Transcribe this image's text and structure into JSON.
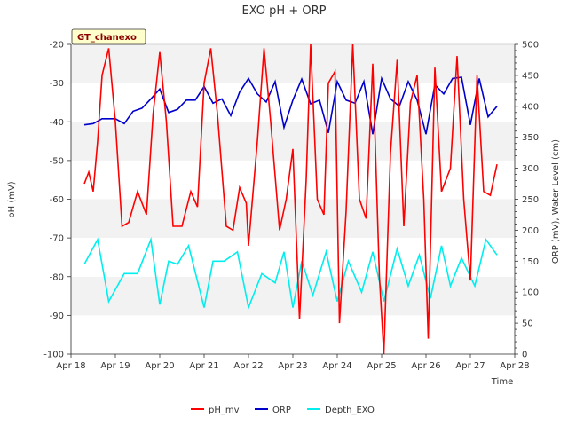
{
  "chart_data": {
    "type": "line",
    "title": "EXO pH + ORP",
    "station_label": "GT_chanexo",
    "xlabel": "Time",
    "ylabel_left": "pH (mV)",
    "ylabel_right": "ORP (mV), Water Level (cm)",
    "x_ticks": [
      "Apr 18",
      "Apr 19",
      "Apr 20",
      "Apr 21",
      "Apr 22",
      "Apr 23",
      "Apr 24",
      "Apr 25",
      "Apr 26",
      "Apr 27",
      "Apr 28"
    ],
    "x_range": [
      "Apr 18",
      "Apr 28"
    ],
    "ylim_left": [
      -100,
      -20
    ],
    "ylim_right": [
      0,
      500
    ],
    "y_ticks_left": [
      "-100",
      "-90",
      "-80",
      "-70",
      "-60",
      "-50",
      "-40",
      "-30",
      "-20"
    ],
    "y_ticks_right": [
      "0",
      "50",
      "100",
      "150",
      "200",
      "250",
      "300",
      "350",
      "400",
      "450",
      "500"
    ],
    "grid": "horizontal bands",
    "legend_position": "bottom",
    "series": [
      {
        "name": "pH_mv",
        "axis": "left",
        "color": "#ff0000",
        "x": [
          18.3,
          18.4,
          18.5,
          18.6,
          18.7,
          18.85,
          19.0,
          19.15,
          19.3,
          19.5,
          19.7,
          19.85,
          20.0,
          20.15,
          20.3,
          20.5,
          20.7,
          20.85,
          21.0,
          21.15,
          21.3,
          21.5,
          21.65,
          21.8,
          21.95,
          22.0,
          22.2,
          22.35,
          22.5,
          22.7,
          22.85,
          23.0,
          23.15,
          23.3,
          23.4,
          23.55,
          23.7,
          23.8,
          23.95,
          24.05,
          24.2,
          24.35,
          24.5,
          24.65,
          24.8,
          24.95,
          25.05,
          25.2,
          25.35,
          25.5,
          25.65,
          25.8,
          25.95,
          26.05,
          26.2,
          26.35,
          26.55,
          26.7,
          26.85,
          27.0,
          27.15,
          27.3,
          27.45,
          27.6
        ],
        "y": [
          -56,
          -53,
          -58,
          -45,
          -28,
          -21,
          -40,
          -67,
          -66,
          -58,
          -64,
          -38,
          -22,
          -40,
          -67,
          -67,
          -58,
          -62,
          -30,
          -21,
          -38,
          -67,
          -68,
          -57,
          -61,
          -72,
          -45,
          -21,
          -40,
          -68,
          -60,
          -47,
          -91,
          -55,
          -20,
          -60,
          -64,
          -30,
          -27,
          -92,
          -63,
          -20,
          -60,
          -65,
          -25,
          -80,
          -100,
          -48,
          -24,
          -67,
          -35,
          -28,
          -60,
          -96,
          -26,
          -58,
          -52,
          -23,
          -60,
          -81,
          -28,
          -58,
          -59,
          -51
        ]
      },
      {
        "name": "ORP",
        "axis": "right",
        "color": "#0000cc",
        "x": [
          18.3,
          18.5,
          18.7,
          19.0,
          19.2,
          19.4,
          19.6,
          19.8,
          20.0,
          20.2,
          20.4,
          20.6,
          20.8,
          21.0,
          21.2,
          21.4,
          21.6,
          21.8,
          22.0,
          22.2,
          22.4,
          22.6,
          22.8,
          23.0,
          23.2,
          23.4,
          23.6,
          23.8,
          24.0,
          24.2,
          24.4,
          24.6,
          24.8,
          25.0,
          25.2,
          25.4,
          25.6,
          25.8,
          26.0,
          26.2,
          26.4,
          26.6,
          26.8,
          27.0,
          27.2,
          27.4,
          27.6
        ],
        "y": [
          370,
          372,
          380,
          380,
          372,
          392,
          397,
          412,
          428,
          390,
          395,
          410,
          410,
          432,
          405,
          412,
          385,
          423,
          445,
          420,
          407,
          440,
          366,
          410,
          444,
          404,
          410,
          357,
          440,
          410,
          405,
          440,
          355,
          445,
          412,
          400,
          440,
          410,
          355,
          435,
          420,
          445,
          447,
          370,
          445,
          383,
          400
        ]
      },
      {
        "name": "Depth_EXO",
        "axis": "right",
        "color": "#00eeee",
        "x": [
          18.3,
          18.6,
          18.85,
          19.2,
          19.5,
          19.8,
          20.0,
          20.2,
          20.4,
          20.65,
          21.0,
          21.2,
          21.45,
          21.75,
          22.0,
          22.3,
          22.6,
          22.8,
          23.0,
          23.2,
          23.45,
          23.75,
          24.0,
          24.25,
          24.55,
          24.8,
          25.05,
          25.35,
          25.6,
          25.85,
          26.1,
          26.35,
          26.55,
          26.8,
          27.1,
          27.35,
          27.6
        ],
        "y": [
          145,
          185,
          85,
          130,
          130,
          185,
          80,
          150,
          145,
          175,
          75,
          150,
          150,
          165,
          75,
          130,
          115,
          165,
          75,
          150,
          95,
          165,
          85,
          150,
          100,
          165,
          85,
          170,
          110,
          160,
          90,
          175,
          110,
          155,
          110,
          185,
          160
        ]
      }
    ]
  }
}
